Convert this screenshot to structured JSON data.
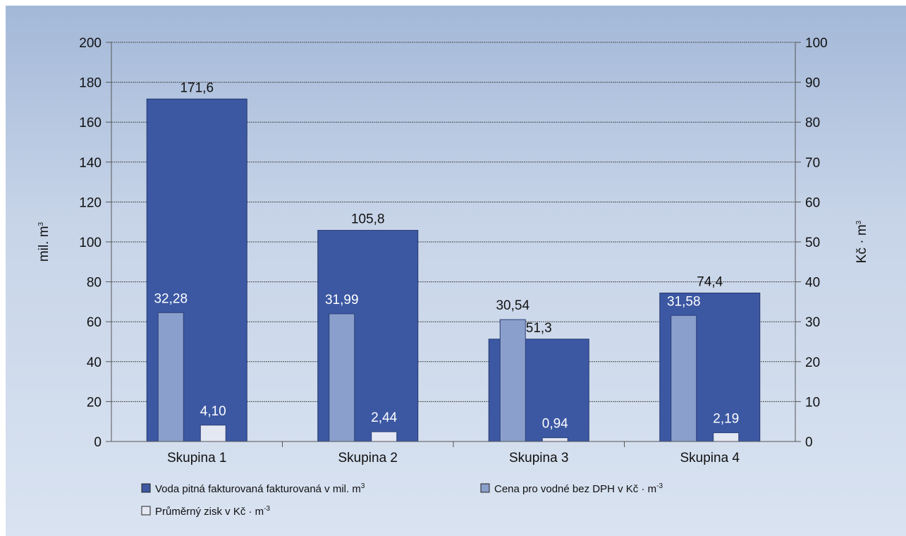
{
  "title": "",
  "chart_data": {
    "type": "bar",
    "categories": [
      "Skupina 1",
      "Skupina 2",
      "Skupina 3",
      "Skupina 4"
    ],
    "series": [
      {
        "name": "Voda pitná fakturovaná fakturovaná v mil. m³",
        "axis": "left",
        "values": [
          171.6,
          105.8,
          51.3,
          74.4
        ],
        "labels": [
          "171,6",
          "105,8",
          "51,3",
          "74,4"
        ],
        "color": "#3c58a3"
      },
      {
        "name": "Cena pro vodné bez DPH v Kč · m⁻³",
        "axis": "right",
        "values": [
          32.28,
          31.99,
          30.54,
          31.58
        ],
        "labels": [
          "32,28",
          "31,99",
          "30,54",
          "31,58"
        ],
        "color": "#8a9fcb"
      },
      {
        "name": "Průměrný zisk v Kč · m⁻³",
        "axis": "right",
        "values": [
          4.1,
          2.44,
          0.94,
          2.19
        ],
        "labels": [
          "4,10",
          "2,44",
          "0,94",
          "2,19"
        ],
        "color": "#e4e8f3"
      }
    ],
    "ylabel_left": "mil. m³",
    "ylabel_right": "Kč · m³",
    "ylim_left": [
      0,
      200
    ],
    "ylim_right": [
      0,
      100
    ],
    "yticks_left": [
      "0",
      "20",
      "40",
      "60",
      "80",
      "100",
      "120",
      "140",
      "160",
      "180",
      "200"
    ],
    "yticks_right": [
      "0",
      "10",
      "20",
      "30",
      "40",
      "50",
      "60",
      "70",
      "80",
      "90",
      "100"
    ],
    "grid": true,
    "legend_position": "bottom"
  }
}
